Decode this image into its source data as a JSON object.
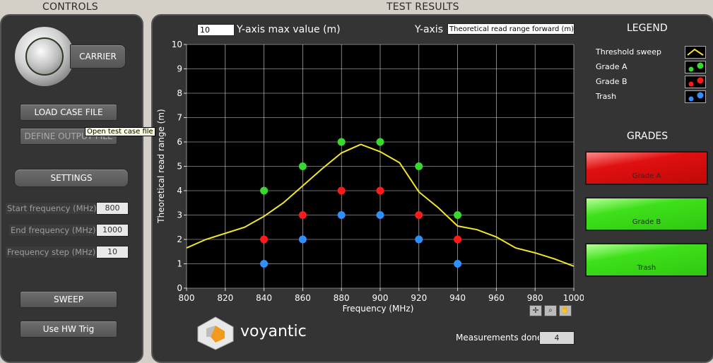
{
  "controls": {
    "title": "CONTROLS",
    "carrier_label": "CARRIER",
    "load_case_file": "LOAD CASE FILE",
    "define_output": "DEFINE OUTPUT FILE",
    "settings": "SETTINGS",
    "start_freq_label": "Start frequency (MHz)",
    "start_freq_value": "800",
    "end_freq_label": "End frequency (MHz)",
    "end_freq_value": "1000",
    "freq_step_label": "Frequency step (MHz)",
    "freq_step_value": "10",
    "sweep": "SWEEP",
    "use_hw_trig": "Use HW Trig",
    "tooltip": "Open test case file"
  },
  "results": {
    "title": "TEST RESULTS",
    "ymax_value": "10",
    "ymax_label": "Y-axis max value (m)",
    "yaxis_label": "Y-axis",
    "yaxis_select": "Theoretical read range forward (m)",
    "measurements_label": "Measurements done",
    "measurements_value": "4",
    "logo_text": "voyantic"
  },
  "legend": {
    "title": "LEGEND",
    "items": [
      "Threshold sweep",
      "Grade A",
      "Grade B",
      "Trash"
    ]
  },
  "grades": {
    "title": "GRADES",
    "items": [
      "Grade A",
      "Grade B",
      "Trash"
    ]
  },
  "colors": {
    "threshold": "#f2e52a",
    "grade_a": "#39d82f",
    "grade_b": "#ff1a1a",
    "trash": "#2f8fff",
    "grade_a_box": "#e01010",
    "grade_b_box": "#3ee01a",
    "trash_box": "#3ee01a"
  },
  "chart_data": {
    "type": "scatter",
    "xlabel": "Frequency (MHz)",
    "ylabel": "Theoretical read range (m)",
    "xlim": [
      800,
      1000
    ],
    "ylim": [
      0,
      10
    ],
    "xticks": [
      800,
      820,
      840,
      860,
      880,
      900,
      920,
      940,
      960,
      980,
      1000
    ],
    "yticks": [
      0,
      1,
      2,
      3,
      4,
      5,
      6,
      7,
      8,
      9,
      10
    ],
    "grid": true,
    "series": [
      {
        "name": "Threshold sweep",
        "kind": "line",
        "x": [
          800,
          810,
          820,
          830,
          840,
          850,
          860,
          870,
          880,
          890,
          900,
          910,
          920,
          930,
          940,
          950,
          960,
          970,
          980,
          990,
          1000
        ],
        "values": [
          1.65,
          2.0,
          2.25,
          2.5,
          2.95,
          3.5,
          4.2,
          4.9,
          5.55,
          5.9,
          5.6,
          5.15,
          3.95,
          3.3,
          2.55,
          2.4,
          2.1,
          1.65,
          1.45,
          1.2,
          0.9
        ]
      },
      {
        "name": "Grade A",
        "kind": "points",
        "x": [
          840,
          860,
          880,
          900,
          920,
          940
        ],
        "values": [
          4,
          5,
          6,
          6,
          5,
          3
        ]
      },
      {
        "name": "Grade B",
        "kind": "points",
        "x": [
          840,
          860,
          880,
          900,
          920,
          940
        ],
        "values": [
          2,
          3,
          4,
          4,
          3,
          2
        ]
      },
      {
        "name": "Trash",
        "kind": "points",
        "x": [
          840,
          860,
          880,
          900,
          920,
          940
        ],
        "values": [
          1,
          2,
          3,
          3,
          2,
          1
        ]
      }
    ]
  }
}
